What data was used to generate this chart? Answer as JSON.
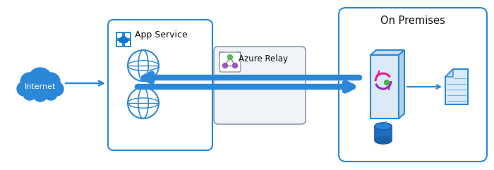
{
  "background_color": "#ffffff",
  "azure_blue": "#0078d4",
  "border_blue": "#2b88d8",
  "light_blue_fill": "#e8f4fb",
  "arrow_blue": "#2b88d8",
  "relay_border": "#8a9ba8",
  "relay_fill": "#f0f4f8",
  "internet_label": "Internet",
  "app_service_label": "App Service",
  "azure_relay_label": "Azure Relay",
  "on_premises_label": "On Premises",
  "figsize": [
    7.0,
    2.41
  ],
  "dpi": 100,
  "cloud_color": "#2b88d8",
  "globe_color": "#2b88d8",
  "db_color": "#1e5fa8",
  "server_fill": "#daeaf7",
  "server_top": "#c5def2",
  "server_right": "#b0d3ec"
}
